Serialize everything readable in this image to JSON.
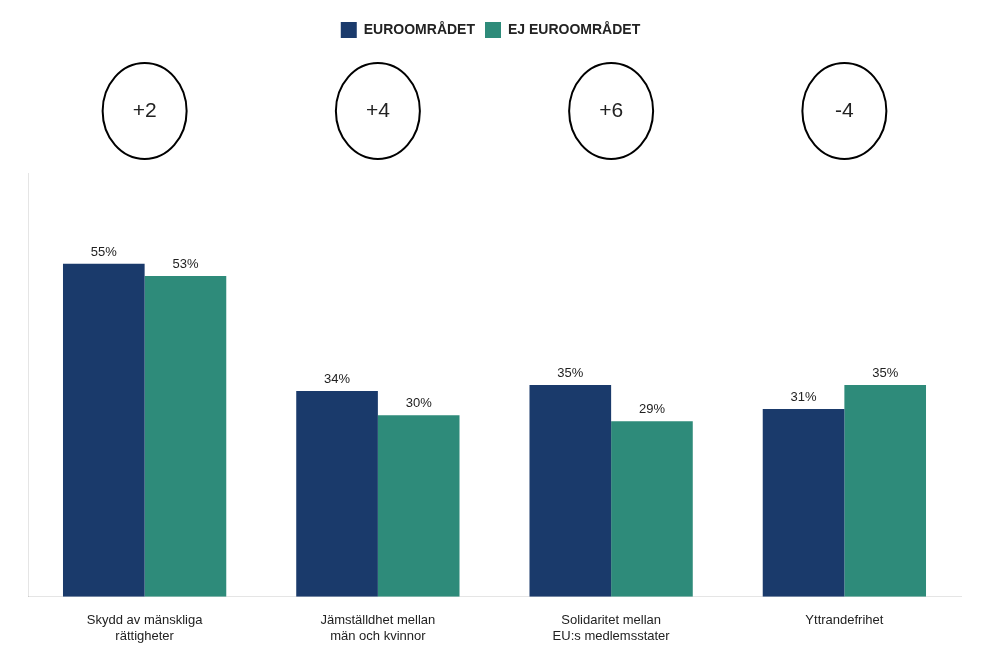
{
  "chart_data": {
    "type": "bar",
    "categories": [
      "Skydd av mänskliga\nrättigheter",
      "Jämställdhet mellan\nmän och kvinnor",
      "Solidaritet mellan\nEU:s medlemsstater",
      "Yttrandefrihet"
    ],
    "series": [
      {
        "name": "EUROOMRÅDET",
        "color": "#1a3a6b",
        "values": [
          55,
          34,
          35,
          31
        ],
        "value_labels": [
          "55%",
          "34%",
          "35%",
          "31%"
        ]
      },
      {
        "name": "EJ EUROOMRÅDET",
        "color": "#2e8b7a",
        "values": [
          53,
          30,
          29,
          35
        ],
        "value_labels": [
          "53%",
          "30%",
          "29%",
          "35%"
        ]
      }
    ],
    "annotations": [
      "+2",
      "+4",
      "+6",
      "-4"
    ],
    "ylim": [
      0,
      70
    ],
    "grid": false,
    "legend": "top",
    "data_labels": true,
    "tick_labels": "x"
  }
}
